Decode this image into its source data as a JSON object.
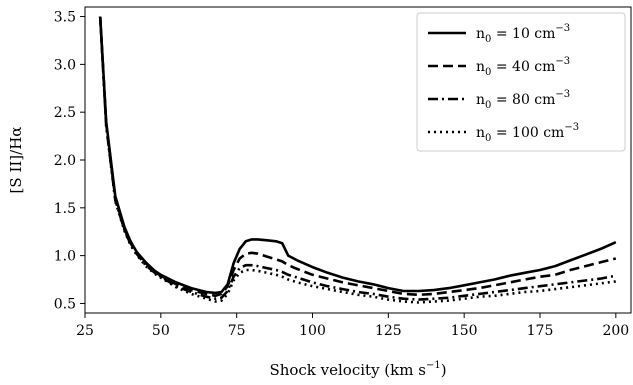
{
  "chart_data": {
    "type": "line",
    "xlabel": "Shock velocity (km s",
    "xlabel_sup": "−1",
    "xlabel_end": ")",
    "ylabel": "[S II]/Hα",
    "xlim": [
      25,
      205
    ],
    "ylim": [
      0.4,
      3.6
    ],
    "xticks": [
      25,
      50,
      75,
      100,
      125,
      150,
      175,
      200
    ],
    "yticks": [
      0.5,
      1.0,
      1.5,
      2.0,
      2.5,
      3.0,
      3.5
    ],
    "ytick_labels": [
      "0.5",
      "1.0",
      "1.5",
      "2.0",
      "2.5",
      "3.0",
      "3.5"
    ],
    "grid": false,
    "legend_position": "top-right",
    "x": [
      30,
      32,
      35,
      38,
      40,
      42,
      45,
      48,
      50,
      55,
      60,
      65,
      68,
      70,
      72,
      74,
      76,
      78,
      80,
      82,
      85,
      88,
      90,
      92,
      95,
      100,
      105,
      110,
      115,
      120,
      125,
      130,
      135,
      140,
      145,
      150,
      155,
      160,
      165,
      170,
      175,
      180,
      185,
      190,
      195,
      200
    ],
    "series": [
      {
        "legend_base": "n",
        "legend_sub": "0",
        "legend_mid": " = 10 cm",
        "legend_sup": "−3",
        "dash": "",
        "values": [
          3.5,
          2.4,
          1.62,
          1.3,
          1.15,
          1.04,
          0.93,
          0.84,
          0.8,
          0.72,
          0.66,
          0.62,
          0.61,
          0.62,
          0.7,
          0.92,
          1.07,
          1.15,
          1.17,
          1.17,
          1.16,
          1.15,
          1.13,
          1.0,
          0.95,
          0.88,
          0.82,
          0.77,
          0.73,
          0.7,
          0.66,
          0.63,
          0.63,
          0.64,
          0.66,
          0.69,
          0.72,
          0.75,
          0.79,
          0.82,
          0.85,
          0.89,
          0.95,
          1.01,
          1.07,
          1.14
        ]
      },
      {
        "legend_base": "n",
        "legend_sub": "0",
        "legend_mid": " = 40 cm",
        "legend_sup": "−3",
        "dash": "10,5",
        "values": [
          3.5,
          2.38,
          1.6,
          1.28,
          1.13,
          1.03,
          0.92,
          0.83,
          0.79,
          0.7,
          0.64,
          0.6,
          0.58,
          0.6,
          0.68,
          0.85,
          0.97,
          1.02,
          1.03,
          1.02,
          0.99,
          0.96,
          0.94,
          0.9,
          0.86,
          0.8,
          0.76,
          0.72,
          0.69,
          0.66,
          0.63,
          0.6,
          0.59,
          0.6,
          0.62,
          0.64,
          0.66,
          0.69,
          0.72,
          0.75,
          0.78,
          0.8,
          0.85,
          0.89,
          0.93,
          0.97
        ]
      },
      {
        "legend_base": "n",
        "legend_sub": "0",
        "legend_mid": " = 80 cm",
        "legend_sup": "−3",
        "dash": "10,4,2,4",
        "values": [
          3.5,
          2.36,
          1.58,
          1.27,
          1.12,
          1.02,
          0.9,
          0.82,
          0.78,
          0.68,
          0.62,
          0.57,
          0.55,
          0.56,
          0.63,
          0.78,
          0.87,
          0.9,
          0.9,
          0.89,
          0.87,
          0.85,
          0.83,
          0.8,
          0.77,
          0.72,
          0.68,
          0.65,
          0.62,
          0.6,
          0.57,
          0.55,
          0.54,
          0.55,
          0.56,
          0.58,
          0.6,
          0.62,
          0.64,
          0.66,
          0.68,
          0.7,
          0.72,
          0.74,
          0.76,
          0.79
        ]
      },
      {
        "legend_base": "n",
        "legend_sub": "0",
        "legend_mid": " = 100 cm",
        "legend_sup": "−3",
        "dash": "2,4",
        "values": [
          3.5,
          2.35,
          1.57,
          1.26,
          1.11,
          1.01,
          0.89,
          0.81,
          0.77,
          0.67,
          0.6,
          0.55,
          0.52,
          0.53,
          0.6,
          0.74,
          0.82,
          0.85,
          0.85,
          0.84,
          0.82,
          0.8,
          0.78,
          0.75,
          0.72,
          0.68,
          0.65,
          0.62,
          0.59,
          0.57,
          0.54,
          0.52,
          0.51,
          0.52,
          0.53,
          0.55,
          0.57,
          0.58,
          0.6,
          0.62,
          0.63,
          0.65,
          0.67,
          0.69,
          0.71,
          0.73
        ]
      }
    ]
  }
}
